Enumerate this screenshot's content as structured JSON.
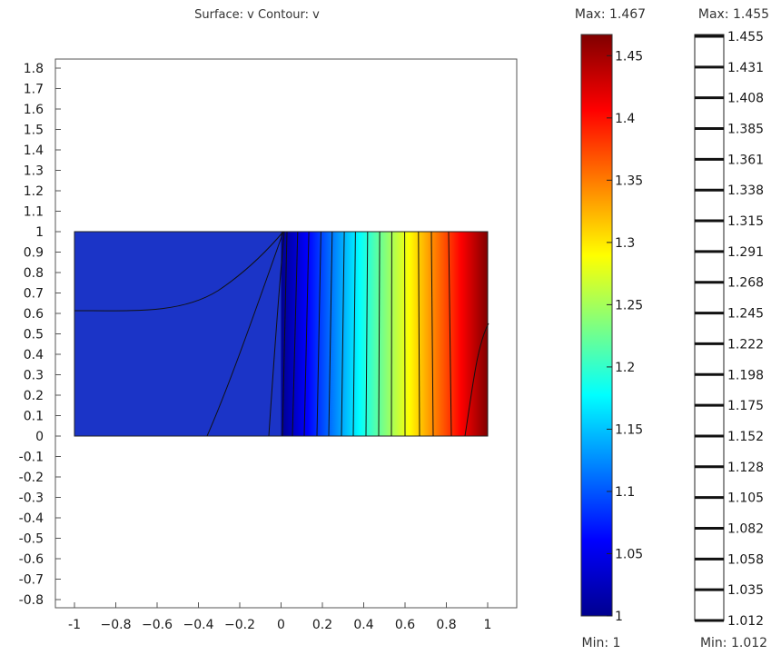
{
  "chart_data": {
    "type": "heatmap",
    "title": "Surface: v   Contour: v",
    "surface_expression": "v",
    "contour_expression": "v",
    "xlim": [
      -1.05,
      1.1
    ],
    "ylim": [
      -0.83,
      1.84
    ],
    "x_ticks": [
      "-1",
      "−0.8",
      "−0.6",
      "−0.4",
      "−0.2",
      "0",
      "0.2",
      "0.4",
      "0.6",
      "0.8",
      "1"
    ],
    "y_ticks": [
      "1.8",
      "1.7",
      "1.6",
      "1.5",
      "1.4",
      "1.3",
      "1.2",
      "1.1",
      "1",
      "0.9",
      "0.8",
      "0.7",
      "0.6",
      "0.5",
      "0.4",
      "0.3",
      "0.2",
      "0.1",
      "0",
      "-0.1",
      "-0.2",
      "-0.3",
      "-0.4",
      "-0.5",
      "-0.6",
      "-0.7",
      "-0.8"
    ],
    "domain": {
      "x": [
        -1,
        1
      ],
      "y": [
        0,
        1
      ]
    },
    "colormap": "jet",
    "surface_range": {
      "max_label": "Max: 1.467",
      "min_label": "Min: 1",
      "max": 1.467,
      "min": 1
    },
    "surface_ticks": [
      "1.45",
      "1.4",
      "1.35",
      "1.3",
      "1.25",
      "1.2",
      "1.15",
      "1.1",
      "1.05",
      "1"
    ],
    "contour_range": {
      "max_label": "Max: 1.455",
      "min_label": "Min: 1.012",
      "max": 1.455,
      "min": 1.012
    },
    "contour_levels": [
      "1.455",
      "1.431",
      "1.408",
      "1.385",
      "1.361",
      "1.338",
      "1.315",
      "1.291",
      "1.268",
      "1.245",
      "1.222",
      "1.198",
      "1.175",
      "1.152",
      "1.128",
      "1.105",
      "1.082",
      "1.058",
      "1.035",
      "1.012"
    ],
    "colors": {
      "min_color": "#00007f",
      "max_color": "#7f0000",
      "background": "#ffffff",
      "frame": "#555555"
    }
  }
}
